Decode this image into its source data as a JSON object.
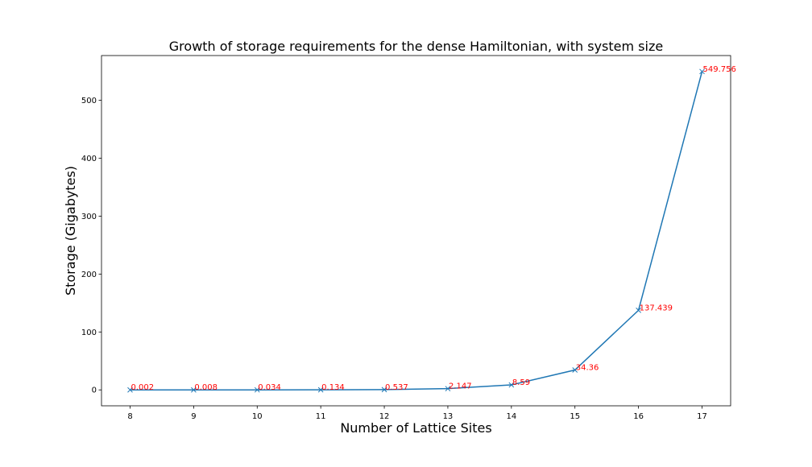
{
  "chart_data": {
    "type": "line",
    "title": "Growth of storage requirements for the dense Hamiltonian, with system size",
    "xlabel": "Number of Lattice Sites",
    "ylabel": "Storage (Gigabytes)",
    "x": [
      8,
      9,
      10,
      11,
      12,
      13,
      14,
      15,
      16,
      17
    ],
    "y": [
      0.002,
      0.008,
      0.034,
      0.134,
      0.537,
      2.147,
      8.59,
      34.36,
      137.439,
      549.756
    ],
    "point_labels": [
      "0.002",
      "0.008",
      "0.034",
      "0.134",
      "0.537",
      "2.147",
      "8.59",
      "34.36",
      "137.439",
      "549.756"
    ],
    "xticks": [
      "8",
      "9",
      "10",
      "11",
      "12",
      "13",
      "14",
      "15",
      "16",
      "17"
    ],
    "yticks": [
      "0",
      "100",
      "200",
      "300",
      "400",
      "500"
    ],
    "xlim": [
      7.55,
      17.45
    ],
    "ylim": [
      -27.5,
      577.3
    ],
    "marker": "x",
    "grid": false,
    "line_color": "#1f77b4",
    "label_color": "#ff0000"
  }
}
